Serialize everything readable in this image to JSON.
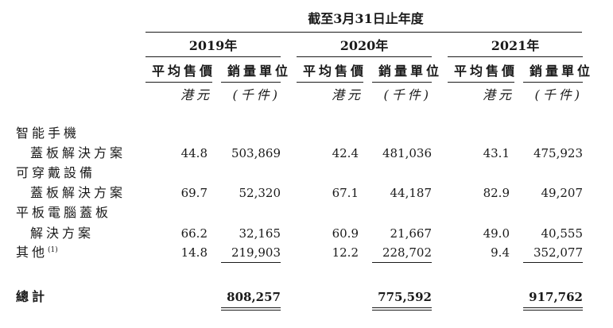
{
  "header": {
    "title": "截至3月31日止年度"
  },
  "years": [
    "2019年",
    "2020年",
    "2021年"
  ],
  "columns": {
    "avg_price": "平均售價",
    "units": "銷量單位"
  },
  "units_row": {
    "currency": "港元",
    "thousand": "(千件)"
  },
  "rows": [
    {
      "label": "智能手機",
      "label2": "蓋板解決方案",
      "values": [
        "44.8",
        "503,869",
        "42.4",
        "481,036",
        "43.1",
        "475,923"
      ]
    },
    {
      "label": "可穿戴設備",
      "label2": "蓋板解決方案",
      "values": [
        "69.7",
        "52,320",
        "67.1",
        "44,187",
        "82.9",
        "49,207"
      ]
    },
    {
      "label": "平板電腦蓋板",
      "label2": "解決方案",
      "values": [
        "66.2",
        "32,165",
        "60.9",
        "21,667",
        "49.0",
        "40,555"
      ]
    },
    {
      "label": "其他",
      "label_sup": "(1)",
      "values": [
        "14.8",
        "219,903",
        "12.2",
        "228,702",
        "9.4",
        "352,077"
      ]
    }
  ],
  "total": {
    "label": "總計",
    "values": [
      "808,257",
      "775,592",
      "917,762"
    ]
  }
}
